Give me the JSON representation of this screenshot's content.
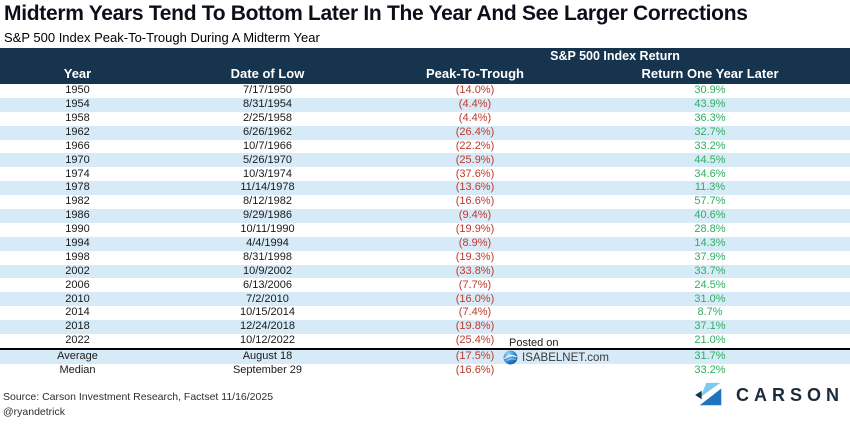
{
  "title": "Midterm Years Tend To Bottom Later In The Year And See Larger Corrections",
  "subtitle": "S&P 500 Index Peak-To-Trough During A Midterm Year",
  "table": {
    "group_header": "S&P 500 Index Return",
    "columns": [
      "Year",
      "Date of Low",
      "Peak-To-Trough",
      "Return One Year Later"
    ],
    "rows": [
      {
        "year": "1950",
        "date_of_low": "7/17/1950",
        "peak_to_trough": "(14.0%)",
        "return_one_year_later": "30.9%"
      },
      {
        "year": "1954",
        "date_of_low": "8/31/1954",
        "peak_to_trough": "(4.4%)",
        "return_one_year_later": "43.9%"
      },
      {
        "year": "1958",
        "date_of_low": "2/25/1958",
        "peak_to_trough": "(4.4%)",
        "return_one_year_later": "36.3%"
      },
      {
        "year": "1962",
        "date_of_low": "6/26/1962",
        "peak_to_trough": "(26.4%)",
        "return_one_year_later": "32.7%"
      },
      {
        "year": "1966",
        "date_of_low": "10/7/1966",
        "peak_to_trough": "(22.2%)",
        "return_one_year_later": "33.2%"
      },
      {
        "year": "1970",
        "date_of_low": "5/26/1970",
        "peak_to_trough": "(25.9%)",
        "return_one_year_later": "44.5%"
      },
      {
        "year": "1974",
        "date_of_low": "10/3/1974",
        "peak_to_trough": "(37.6%)",
        "return_one_year_later": "34.6%"
      },
      {
        "year": "1978",
        "date_of_low": "11/14/1978",
        "peak_to_trough": "(13.6%)",
        "return_one_year_later": "11.3%"
      },
      {
        "year": "1982",
        "date_of_low": "8/12/1982",
        "peak_to_trough": "(16.6%)",
        "return_one_year_later": "57.7%"
      },
      {
        "year": "1986",
        "date_of_low": "9/29/1986",
        "peak_to_trough": "(9.4%)",
        "return_one_year_later": "40.6%"
      },
      {
        "year": "1990",
        "date_of_low": "10/11/1990",
        "peak_to_trough": "(19.9%)",
        "return_one_year_later": "28.8%"
      },
      {
        "year": "1994",
        "date_of_low": "4/4/1994",
        "peak_to_trough": "(8.9%)",
        "return_one_year_later": "14.3%"
      },
      {
        "year": "1998",
        "date_of_low": "8/31/1998",
        "peak_to_trough": "(19.3%)",
        "return_one_year_later": "37.9%"
      },
      {
        "year": "2002",
        "date_of_low": "10/9/2002",
        "peak_to_trough": "(33.8%)",
        "return_one_year_later": "33.7%"
      },
      {
        "year": "2006",
        "date_of_low": "6/13/2006",
        "peak_to_trough": "(7.7%)",
        "return_one_year_later": "24.5%"
      },
      {
        "year": "2010",
        "date_of_low": "7/2/2010",
        "peak_to_trough": "(16.0%)",
        "return_one_year_later": "31.0%"
      },
      {
        "year": "2014",
        "date_of_low": "10/15/2014",
        "peak_to_trough": "(7.4%)",
        "return_one_year_later": "8.7%"
      },
      {
        "year": "2018",
        "date_of_low": "12/24/2018",
        "peak_to_trough": "(19.8%)",
        "return_one_year_later": "37.1%"
      },
      {
        "year": "2022",
        "date_of_low": "10/12/2022",
        "peak_to_trough": "(25.4%)",
        "return_one_year_later": "21.0%"
      }
    ],
    "summary_rows": [
      {
        "year": "Average",
        "date_of_low": "August 18",
        "peak_to_trough": "(17.5%)",
        "return_one_year_later": "31.7%"
      },
      {
        "year": "Median",
        "date_of_low": "September 29",
        "peak_to_trough": "(16.6%)",
        "return_one_year_later": "33.2%"
      }
    ]
  },
  "watermark": {
    "posted_on": "Posted on",
    "site": "ISABELNET.com"
  },
  "footer": {
    "source": "Source: Carson Investment Research, Factset 11/16/2025",
    "handle": "@ryandetrick",
    "brand": "CARSON"
  },
  "colors": {
    "header_bg": "#17344f",
    "row_alt_bg": "#d7eaf7",
    "negative": "#c0392b",
    "positive": "#2fae62",
    "brand_navy": "#1b2b3b",
    "brand_light_blue": "#7fc9ea",
    "brand_mid_blue": "#1f74c0"
  },
  "chart_data": {
    "type": "table",
    "title": "Midterm Years Tend To Bottom Later In The Year And See Larger Corrections",
    "subtitle": "S&P 500 Index Peak-To-Trough During A Midterm Year",
    "group_header": "S&P 500 Index Return",
    "columns": [
      "Year",
      "Date of Low",
      "Peak-To-Trough (%)",
      "Return One Year Later (%)"
    ],
    "rows": [
      [
        1950,
        "7/17/1950",
        -14.0,
        30.9
      ],
      [
        1954,
        "8/31/1954",
        -4.4,
        43.9
      ],
      [
        1958,
        "2/25/1958",
        -4.4,
        36.3
      ],
      [
        1962,
        "6/26/1962",
        -26.4,
        32.7
      ],
      [
        1966,
        "10/7/1966",
        -22.2,
        33.2
      ],
      [
        1970,
        "5/26/1970",
        -25.9,
        44.5
      ],
      [
        1974,
        "10/3/1974",
        -37.6,
        34.6
      ],
      [
        1978,
        "11/14/1978",
        -13.6,
        11.3
      ],
      [
        1982,
        "8/12/1982",
        -16.6,
        57.7
      ],
      [
        1986,
        "9/29/1986",
        -9.4,
        40.6
      ],
      [
        1990,
        "10/11/1990",
        -19.9,
        28.8
      ],
      [
        1994,
        "4/4/1994",
        -8.9,
        14.3
      ],
      [
        1998,
        "8/31/1998",
        -19.3,
        37.9
      ],
      [
        2002,
        "10/9/2002",
        -33.8,
        33.7
      ],
      [
        2006,
        "6/13/2006",
        -7.7,
        24.5
      ],
      [
        2010,
        "7/2/2010",
        -16.0,
        31.0
      ],
      [
        2014,
        "10/15/2014",
        -7.4,
        8.7
      ],
      [
        2018,
        "12/24/2018",
        -19.8,
        37.1
      ],
      [
        2022,
        "10/12/2022",
        -25.4,
        21.0
      ]
    ],
    "summary": [
      [
        "Average",
        "August 18",
        -17.5,
        31.7
      ],
      [
        "Median",
        "September 29",
        -16.6,
        33.2
      ]
    ]
  }
}
